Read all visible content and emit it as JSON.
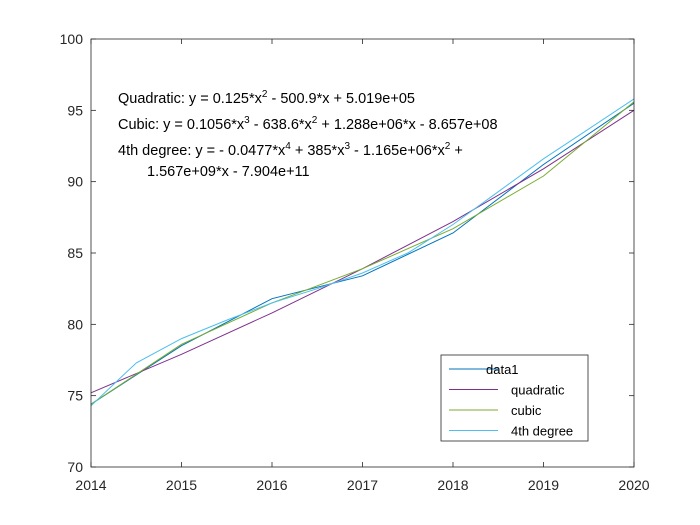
{
  "chart_data": {
    "type": "line",
    "title": "",
    "xlabel": "",
    "ylabel": "",
    "xlim": [
      2014,
      2020
    ],
    "ylim": [
      70,
      100
    ],
    "x_ticks": [
      "2014",
      "2015",
      "2016",
      "2017",
      "2018",
      "2019",
      "2020"
    ],
    "y_ticks": [
      "70",
      "75",
      "80",
      "85",
      "90",
      "95",
      "100"
    ],
    "grid": false,
    "legend_position": "bottom-right",
    "series": [
      {
        "name": "data1",
        "color": "#0072BD",
        "x": [
          2014,
          2015,
          2016,
          2017,
          2018,
          2019,
          2020
        ],
        "y": [
          74.4,
          78.5,
          81.8,
          83.4,
          86.4,
          91.2,
          95.5
        ]
      },
      {
        "name": "quadratic",
        "color": "#7E2F8E",
        "x": [
          2014,
          2015,
          2016,
          2017,
          2018,
          2019,
          2020
        ],
        "y": [
          75.2,
          77.9,
          80.8,
          83.9,
          87.2,
          90.9,
          95.0
        ]
      },
      {
        "name": "cubic",
        "color": "#77AC30",
        "x": [
          2014,
          2015,
          2016,
          2017,
          2018,
          2019,
          2020
        ],
        "y": [
          74.4,
          78.6,
          81.5,
          83.9,
          86.7,
          90.4,
          95.6
        ]
      },
      {
        "name": "4th degree",
        "color": "#4DBEEE",
        "x": [
          2014,
          2014.5,
          2015,
          2015.5,
          2016,
          2016.5,
          2017,
          2017.5,
          2018,
          2018.5,
          2019,
          2019.5,
          2020
        ],
        "y": [
          74.3,
          77.3,
          79.0,
          80.3,
          81.5,
          82.5,
          83.6,
          85.0,
          87.0,
          89.3,
          91.6,
          93.7,
          95.8
        ]
      }
    ],
    "annotations": {
      "quadratic": {
        "prefix": "Quadratic:  y = 0.125*x",
        "e1": "2",
        "rest": " - 500.9*x + 5.019e+05"
      },
      "cubic": {
        "prefix": "Cubic:  y = 0.1056*x",
        "e1": "3",
        "mid": " - 638.6*x",
        "e2": "2",
        "rest": " + 1.288e+06*x - 8.657e+08"
      },
      "quartic_line1": {
        "prefix": "4th degree:  y = - 0.0477*x",
        "e1": "4",
        "mid1": " + 385*x",
        "e2": "3",
        "mid2": " - 1.165e+06*x",
        "e3": "2",
        "rest": " +"
      },
      "quartic_line2": "1.567e+09*x - 7.904e+11"
    }
  }
}
